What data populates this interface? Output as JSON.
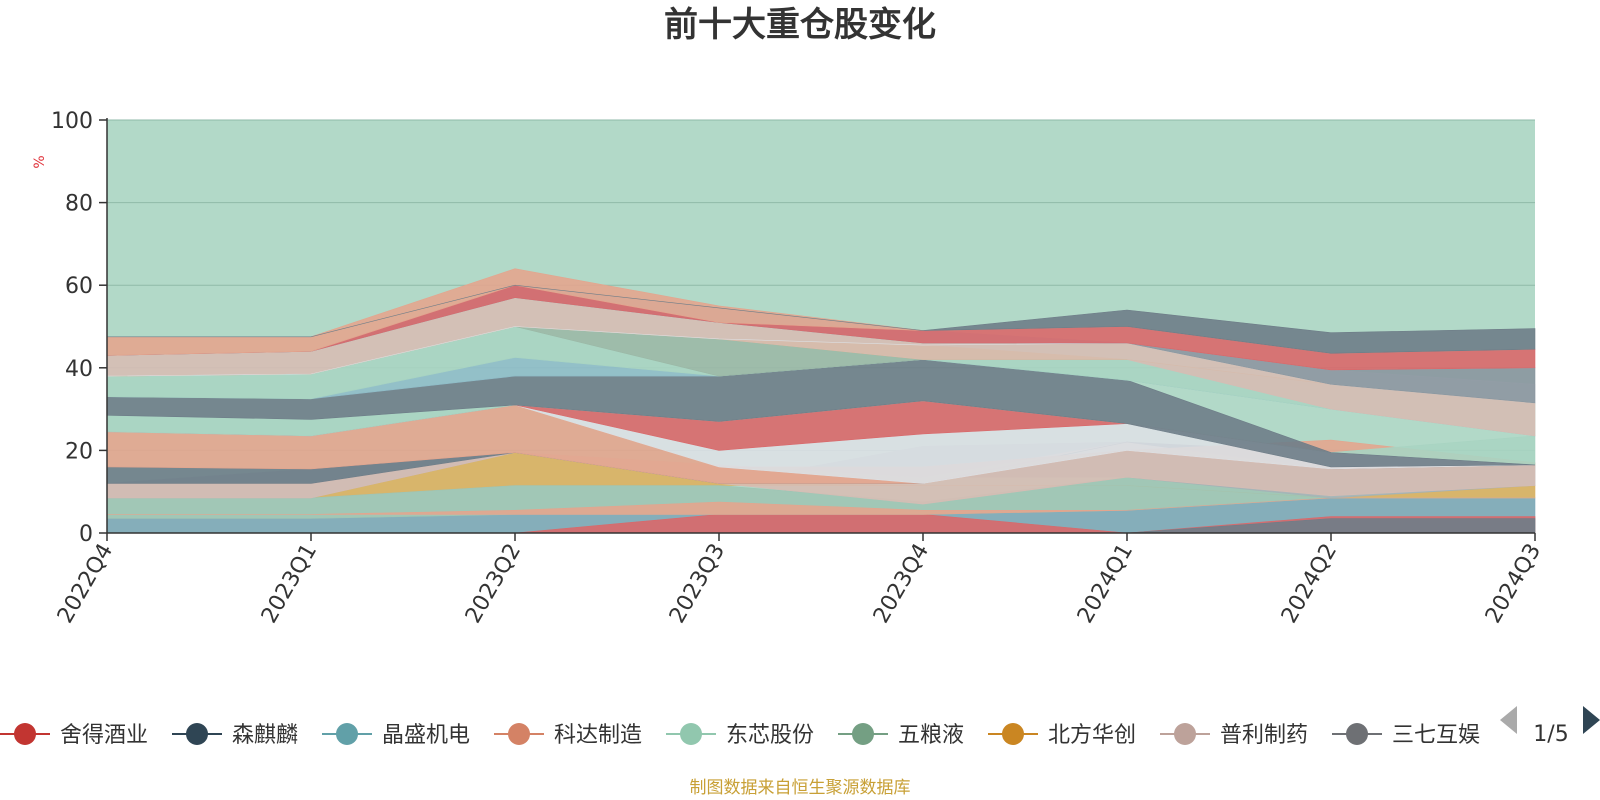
{
  "chart_data": {
    "type": "area",
    "title": "前十大重仓股变化",
    "ylabel": "%",
    "ylim": [
      0,
      100
    ],
    "yticks": [
      "0",
      "20",
      "40",
      "60",
      "80",
      "100"
    ],
    "categories": [
      "2022Q4",
      "2023Q1",
      "2023Q2",
      "2023Q3",
      "2023Q4",
      "2024Q1",
      "2024Q2",
      "2024Q3"
    ],
    "background_value": 100,
    "background_color": "#b2d9c8",
    "bands": [
      {
        "color": "#7fa8b8",
        "lower": [
          0,
          0,
          0,
          0,
          0,
          0,
          0,
          0
        ],
        "upper": [
          3.5,
          3.5,
          4.5,
          4.5,
          4.5,
          5.5,
          8.5,
          8.5
        ]
      },
      {
        "color": "#d9686a",
        "lower": [
          0,
          0,
          0,
          0,
          0,
          0,
          0,
          0
        ],
        "upper": [
          0,
          0,
          0,
          4.5,
          4.5,
          0,
          4,
          4
        ]
      },
      {
        "color": "#6e7d88",
        "lower": [
          0,
          0,
          0,
          0,
          0,
          0,
          0,
          0
        ],
        "upper": [
          0,
          0,
          0,
          0,
          0,
          0,
          3.5,
          3.5
        ]
      },
      {
        "color": "#dcb060",
        "lower": [
          8.5,
          8.5,
          11.5,
          11.5,
          11.5,
          11.5,
          8.5,
          8.5
        ],
        "upper": [
          8.5,
          8.5,
          19.5,
          12,
          11.5,
          11.5,
          8.5,
          11.5
        ]
      },
      {
        "color": "#9fc4b4",
        "lower": [
          3.5,
          3.5,
          4.5,
          4.5,
          4.5,
          5.5,
          8.5,
          8.5
        ],
        "upper": [
          8.5,
          8.5,
          11.5,
          11.5,
          7.5,
          13.5,
          8.5,
          8.5
        ]
      },
      {
        "color": "#e3a58e",
        "lower": [
          4.5,
          4.5,
          4.5,
          4.5,
          4.5,
          5.5,
          8.5,
          8.5
        ],
        "upper": [
          4.5,
          4.5,
          5.5,
          7.5,
          5.5,
          5.5,
          8.5,
          8.5
        ]
      },
      {
        "color": "#a5b2b6",
        "lower": [
          8.5,
          8.5,
          19.5,
          12,
          13.5,
          13.5,
          8.5,
          11.5
        ],
        "upper": [
          12,
          15.5,
          19.5,
          12,
          21,
          22,
          16,
          16.5
        ]
      },
      {
        "color": "#d6bcb4",
        "lower": [
          8.5,
          8.5,
          19.5,
          12,
          7,
          13.5,
          9,
          11.5
        ],
        "upper": [
          12,
          12,
          19.5,
          16.5,
          13.5,
          22,
          15.5,
          16.5
        ]
      },
      {
        "color": "#6e7d88",
        "lower": [
          12,
          12,
          19.5,
          12,
          12,
          22,
          15.5,
          16.5
        ],
        "upper": [
          16,
          15.5,
          19.5,
          12,
          12,
          22,
          19.5,
          16.5
        ]
      },
      {
        "color": "#e3a58e",
        "lower": [
          16,
          15.5,
          19.5,
          12,
          12,
          20,
          15.5,
          16.5
        ],
        "upper": [
          24.5,
          23.5,
          31,
          16,
          16,
          20,
          22.5,
          17
        ]
      },
      {
        "color": "#dce0e4",
        "lower": [
          24.5,
          23.5,
          31,
          16,
          12,
          20,
          15.5,
          16.5
        ],
        "upper": [
          24.5,
          23.5,
          31,
          20,
          24,
          26.5,
          19.5,
          16.5
        ]
      },
      {
        "color": "#d9686a",
        "lower": [
          24.5,
          23.5,
          31,
          20,
          24,
          26.5,
          19.5,
          16.5
        ],
        "upper": [
          24.5,
          23.5,
          31,
          27,
          32,
          26.5,
          19.5,
          16.5
        ]
      },
      {
        "color": "#a8d4c2",
        "lower": [
          24.5,
          23.5,
          31,
          27,
          32,
          26.5,
          19.5,
          16.5
        ],
        "upper": [
          28.5,
          27.5,
          31,
          27,
          32,
          26.5,
          19.5,
          23.5
        ]
      },
      {
        "color": "#6e7d88",
        "lower": [
          28.5,
          27.5,
          31,
          27,
          32,
          26.5,
          16,
          16.5
        ],
        "upper": [
          33,
          32.5,
          38,
          38,
          42,
          37,
          19.5,
          16.5
        ]
      },
      {
        "color": "#8fbcc8",
        "lower": [
          33,
          32.5,
          38,
          38,
          42,
          37,
          30,
          23.5
        ],
        "upper": [
          33,
          32.5,
          42.5,
          38,
          42,
          37,
          30,
          23.5
        ]
      },
      {
        "color": "#a8d4c2",
        "lower": [
          33,
          32.5,
          42.5,
          38,
          42,
          37,
          30,
          23.5
        ],
        "upper": [
          38,
          38.5,
          50,
          38,
          42,
          42,
          36,
          31.5
        ]
      },
      {
        "color": "#9bb8a6",
        "lower": [
          38,
          38.5,
          50,
          38,
          42,
          42,
          36,
          31.5
        ],
        "upper": [
          38,
          38.5,
          50,
          47,
          42,
          42,
          36,
          31.5
        ]
      },
      {
        "color": "#dcb060",
        "lower": [
          38,
          38.5,
          50,
          47,
          42,
          42,
          36,
          31.5
        ],
        "upper": [
          38,
          38.5,
          50,
          47,
          45.5,
          42,
          36,
          31.5
        ]
      },
      {
        "color": "#d6bcb4",
        "lower": [
          38,
          38.5,
          50,
          47,
          42,
          42,
          30,
          23.5
        ],
        "upper": [
          43,
          44,
          57,
          51,
          46,
          46,
          36,
          31.5
        ]
      },
      {
        "color": "#dce0e4",
        "lower": [
          38,
          38.5,
          50,
          47,
          45.5,
          46,
          36,
          31.5
        ],
        "upper": [
          38,
          38.5,
          50,
          47,
          45.5,
          46,
          39.5,
          36
        ]
      },
      {
        "color": "#8a969e",
        "lower": [
          43,
          44,
          57,
          51,
          46,
          46,
          36,
          31.5
        ],
        "upper": [
          43,
          44,
          60,
          51,
          46,
          46,
          39.5,
          40
        ]
      },
      {
        "color": "#8fbcc8",
        "lower": [
          43,
          44,
          57,
          51,
          46,
          46,
          39.5,
          40
        ],
        "upper": [
          43,
          44,
          60,
          54.5,
          49,
          46,
          39.5,
          40
        ]
      },
      {
        "color": "#d9686a",
        "lower": [
          43,
          44,
          57,
          51,
          46,
          46,
          39.5,
          40
        ],
        "upper": [
          43,
          44,
          60,
          51,
          49,
          50,
          43.5,
          44.5
        ]
      },
      {
        "color": "#e3a58e",
        "lower": [
          43,
          44,
          60,
          51,
          49,
          50,
          43.5,
          44.5
        ],
        "upper": [
          47.5,
          47.5,
          64,
          55,
          49,
          50,
          43.5,
          44.5
        ]
      },
      {
        "color": "#6e7d88",
        "lower": [
          47.5,
          47.5,
          60,
          54.5,
          49,
          50,
          43.5,
          44.5
        ],
        "upper": [
          47.5,
          47.5,
          60,
          54.5,
          49,
          54,
          48.5,
          49.5
        ]
      }
    ],
    "legend": [
      {
        "name": "舍得酒业",
        "color": "#c23531"
      },
      {
        "name": "森麒麟",
        "color": "#2f4554"
      },
      {
        "name": "晶盛机电",
        "color": "#61a0a8"
      },
      {
        "name": "科达制造",
        "color": "#d48265"
      },
      {
        "name": "东芯股份",
        "color": "#91c7ae"
      },
      {
        "name": "五粮液",
        "color": "#749f83"
      },
      {
        "name": "北方华创",
        "color": "#ca8622"
      },
      {
        "name": "普利制药",
        "color": "#bda29a"
      },
      {
        "name": "三七互娱",
        "color": "#6e7074"
      }
    ],
    "legend_page": "1/5",
    "source": "制图数据来自恒生聚源数据库",
    "grid": true
  }
}
